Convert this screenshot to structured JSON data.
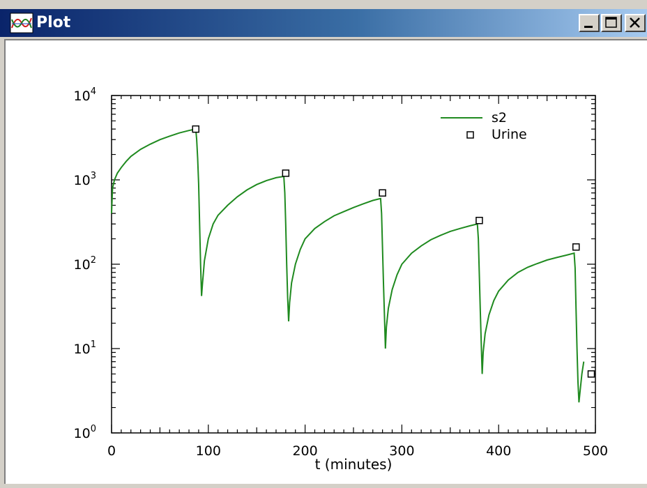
{
  "window": {
    "title": "Plot",
    "controls": {
      "minimize": "minimize",
      "maximize": "maximize",
      "close": "close"
    }
  },
  "colors": {
    "series_line": "#1f8a1f",
    "marker": "#000000",
    "titlebar_start": "#0a246a",
    "titlebar_end": "#a6caf0"
  },
  "chart_data": {
    "type": "line",
    "xlabel": "t (minutes)",
    "ylabel": "",
    "xlim": [
      0,
      500
    ],
    "ylim": [
      1,
      10000
    ],
    "y_scale": "log",
    "x_ticks": [
      "0",
      "100",
      "200",
      "300",
      "400",
      "500"
    ],
    "y_ticks": [
      {
        "base": "10",
        "exp": "0",
        "value": 1
      },
      {
        "base": "10",
        "exp": "1",
        "value": 10
      },
      {
        "base": "10",
        "exp": "2",
        "value": 100
      },
      {
        "base": "10",
        "exp": "3",
        "value": 1000
      },
      {
        "base": "10",
        "exp": "4",
        "value": 10000
      }
    ],
    "grid": false,
    "legend_position": "top-right",
    "series": [
      {
        "name": "s2",
        "style": "line",
        "x": [
          0,
          1,
          3,
          6,
          10,
          15,
          20,
          30,
          40,
          50,
          60,
          70,
          80,
          87,
          88,
          89,
          90,
          91,
          92,
          93,
          94,
          96,
          100,
          105,
          110,
          120,
          130,
          140,
          150,
          160,
          170,
          178,
          179,
          180,
          181,
          182,
          183,
          184,
          186,
          190,
          195,
          200,
          210,
          220,
          230,
          240,
          250,
          260,
          270,
          278,
          279,
          280,
          281,
          282,
          283,
          284,
          286,
          290,
          295,
          300,
          310,
          320,
          330,
          340,
          350,
          360,
          370,
          378,
          379,
          380,
          381,
          382,
          383,
          384,
          386,
          390,
          395,
          400,
          410,
          420,
          430,
          440,
          450,
          460,
          470,
          478,
          479,
          480,
          481,
          482,
          483,
          484,
          486,
          488
        ],
        "y": [
          400,
          800,
          1000,
          1200,
          1400,
          1650,
          1900,
          2300,
          2650,
          3000,
          3300,
          3600,
          3850,
          4000,
          3000,
          1800,
          900,
          300,
          100,
          42,
          60,
          110,
          200,
          300,
          380,
          500,
          630,
          760,
          880,
          980,
          1060,
          1100,
          700,
          300,
          100,
          40,
          21,
          35,
          60,
          100,
          150,
          200,
          265,
          320,
          375,
          420,
          470,
          520,
          570,
          600,
          400,
          160,
          60,
          25,
          10,
          18,
          30,
          50,
          75,
          100,
          135,
          165,
          195,
          220,
          245,
          265,
          285,
          300,
          200,
          80,
          30,
          12,
          5,
          9,
          15,
          25,
          37,
          48,
          65,
          80,
          92,
          102,
          112,
          120,
          128,
          135,
          90,
          30,
          10,
          4,
          2.3,
          3,
          5,
          7
        ]
      },
      {
        "name": "Urine",
        "style": "markers",
        "x": [
          87,
          180,
          280,
          380,
          480,
          500
        ],
        "y": [
          4000,
          1200,
          700,
          330,
          160,
          5
        ]
      }
    ]
  }
}
